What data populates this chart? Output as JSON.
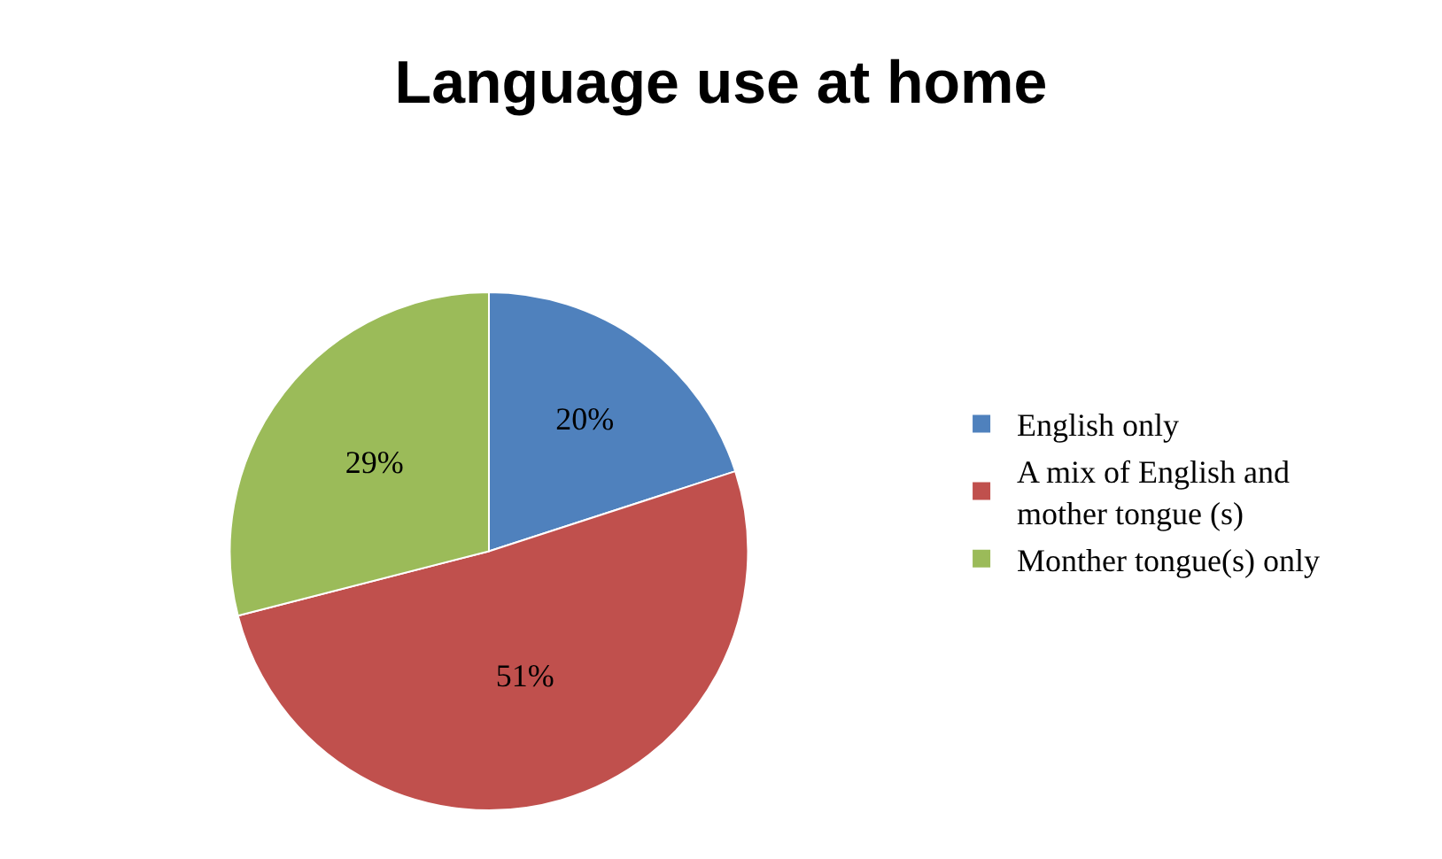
{
  "chart_data": {
    "type": "pie",
    "title": "Language use at home",
    "categories": [
      "English only",
      "A mix of English and mother tongue (s)",
      "Monther tongue(s) only"
    ],
    "values": [
      20,
      51,
      29
    ],
    "colors": [
      "#4f81bd",
      "#c0504d",
      "#9bbb59"
    ],
    "value_labels": [
      "20%",
      "51%",
      "29%"
    ],
    "legend": "right"
  }
}
